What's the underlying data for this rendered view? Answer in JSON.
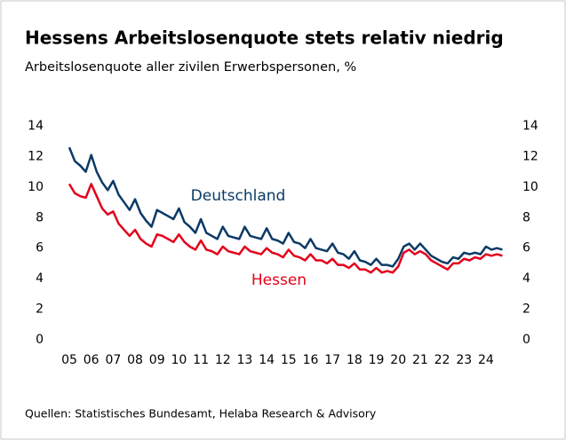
{
  "chart_data": {
    "type": "line",
    "title": "Hessens Arbeitslosenquote stets relativ niedrig",
    "subtitle": "Arbeitslosenquote aller zivilen Erwerbspersonen, %",
    "source": "Quellen: Statistisches Bundesamt, Helaba Research & Advisory",
    "x": [
      2005,
      2005.25,
      2005.5,
      2005.75,
      2006,
      2006.25,
      2006.5,
      2006.75,
      2007,
      2007.25,
      2007.5,
      2007.75,
      2008,
      2008.25,
      2008.5,
      2008.75,
      2009,
      2009.25,
      2009.5,
      2009.75,
      2010,
      2010.25,
      2010.5,
      2010.75,
      2011,
      2011.25,
      2011.5,
      2011.75,
      2012,
      2012.25,
      2012.5,
      2012.75,
      2013,
      2013.25,
      2013.5,
      2013.75,
      2014,
      2014.25,
      2014.5,
      2014.75,
      2015,
      2015.25,
      2015.5,
      2015.75,
      2016,
      2016.25,
      2016.5,
      2016.75,
      2017,
      2017.25,
      2017.5,
      2017.75,
      2018,
      2018.25,
      2018.5,
      2018.75,
      2019,
      2019.25,
      2019.5,
      2019.75,
      2020,
      2020.25,
      2020.5,
      2020.75,
      2021,
      2021.25,
      2021.5,
      2021.75,
      2022,
      2022.25,
      2022.5,
      2022.75,
      2023,
      2023.25,
      2023.5,
      2023.75,
      2024,
      2024.25,
      2024.5,
      2024.75
    ],
    "series": [
      {
        "name": "Deutschland",
        "color": "#0b3a66",
        "values": [
          12.6,
          11.7,
          11.4,
          11.0,
          12.1,
          11.0,
          10.3,
          9.8,
          10.4,
          9.5,
          9.0,
          8.5,
          9.2,
          8.3,
          7.8,
          7.4,
          8.5,
          8.3,
          8.1,
          7.9,
          8.6,
          7.7,
          7.4,
          7.0,
          7.9,
          7.0,
          6.8,
          6.6,
          7.4,
          6.8,
          6.7,
          6.6,
          7.4,
          6.8,
          6.7,
          6.6,
          7.3,
          6.6,
          6.5,
          6.3,
          7.0,
          6.4,
          6.3,
          6.0,
          6.6,
          6.0,
          5.9,
          5.8,
          6.3,
          5.7,
          5.6,
          5.3,
          5.8,
          5.2,
          5.1,
          4.9,
          5.3,
          4.9,
          4.9,
          4.8,
          5.3,
          6.1,
          6.3,
          5.9,
          6.3,
          5.9,
          5.5,
          5.3,
          5.1,
          5.0,
          5.4,
          5.3,
          5.7,
          5.6,
          5.7,
          5.6,
          6.1,
          5.9,
          6.0,
          5.9
        ]
      },
      {
        "name": "Hessen",
        "color": "#e3001b",
        "values": [
          10.2,
          9.6,
          9.4,
          9.3,
          10.2,
          9.4,
          8.6,
          8.2,
          8.4,
          7.6,
          7.2,
          6.8,
          7.2,
          6.6,
          6.3,
          6.1,
          6.9,
          6.8,
          6.6,
          6.4,
          6.9,
          6.4,
          6.1,
          5.9,
          6.5,
          5.9,
          5.8,
          5.6,
          6.1,
          5.8,
          5.7,
          5.6,
          6.1,
          5.8,
          5.7,
          5.6,
          6.0,
          5.7,
          5.6,
          5.4,
          5.9,
          5.5,
          5.4,
          5.2,
          5.6,
          5.2,
          5.2,
          5.0,
          5.3,
          4.9,
          4.9,
          4.7,
          5.0,
          4.6,
          4.6,
          4.4,
          4.7,
          4.4,
          4.5,
          4.4,
          4.8,
          5.7,
          5.9,
          5.6,
          5.8,
          5.6,
          5.2,
          5.0,
          4.8,
          4.6,
          5.0,
          5.0,
          5.3,
          5.2,
          5.4,
          5.3,
          5.6,
          5.5,
          5.6,
          5.5
        ]
      }
    ],
    "xlim": [
      2005,
      2025
    ],
    "xticks": [
      {
        "value": 2005,
        "label": "05"
      },
      {
        "value": 2006,
        "label": "06"
      },
      {
        "value": 2007,
        "label": "07"
      },
      {
        "value": 2008,
        "label": "08"
      },
      {
        "value": 2009,
        "label": "09"
      },
      {
        "value": 2010,
        "label": "10"
      },
      {
        "value": 2011,
        "label": "11"
      },
      {
        "value": 2012,
        "label": "12"
      },
      {
        "value": 2013,
        "label": "13"
      },
      {
        "value": 2014,
        "label": "14"
      },
      {
        "value": 2015,
        "label": "15"
      },
      {
        "value": 2016,
        "label": "16"
      },
      {
        "value": 2017,
        "label": "17"
      },
      {
        "value": 2018,
        "label": "18"
      },
      {
        "value": 2019,
        "label": "19"
      },
      {
        "value": 2020,
        "label": "20"
      },
      {
        "value": 2021,
        "label": "21"
      },
      {
        "value": 2022,
        "label": "22"
      },
      {
        "value": 2023,
        "label": "23"
      },
      {
        "value": 2024,
        "label": "24"
      }
    ],
    "ylim": [
      0,
      14
    ],
    "yticks": [
      0,
      2,
      4,
      6,
      8,
      10,
      12,
      14
    ],
    "y2lim": [
      0,
      14
    ],
    "y2ticks": [
      0,
      2,
      4,
      6,
      8,
      10,
      12,
      14
    ]
  }
}
